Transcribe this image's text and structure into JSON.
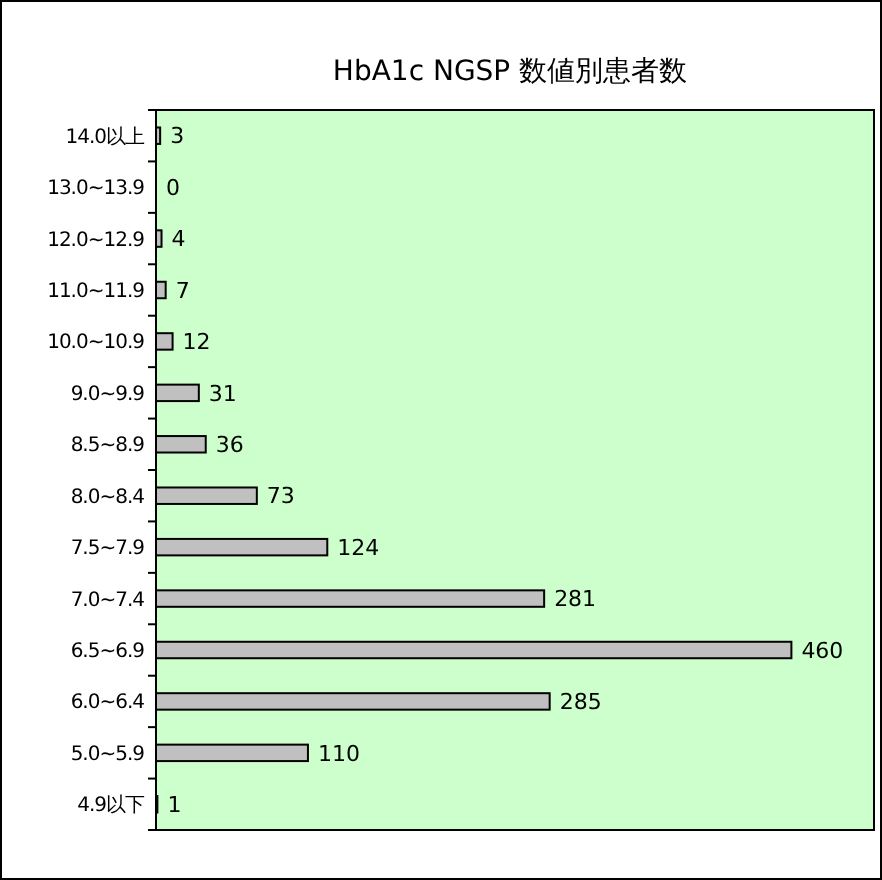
{
  "chart_data": {
    "type": "bar",
    "orientation": "horizontal",
    "title": "HbA1c NGSP 数値別患者数",
    "categories": [
      "14.0以上",
      "13.0~13.9",
      "12.0~12.9",
      "11.0~11.9",
      "10.0~10.9",
      "9.0~9.9",
      "8.5~8.9",
      "8.0~8.4",
      "7.5~7.9",
      "7.0~7.4",
      "6.5~6.9",
      "6.0~6.4",
      "5.0~5.9",
      "4.9以下"
    ],
    "values": [
      3,
      0,
      4,
      7,
      12,
      31,
      36,
      73,
      124,
      281,
      460,
      285,
      110,
      1
    ],
    "color": "#c0c0c0",
    "data_labels": true
  }
}
